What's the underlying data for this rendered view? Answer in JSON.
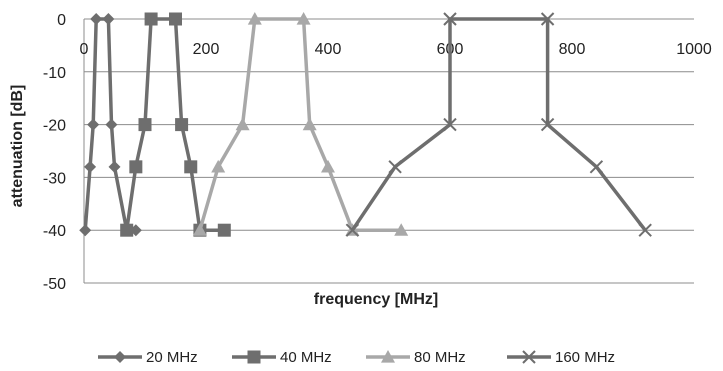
{
  "chart_data": {
    "type": "line",
    "title": "",
    "xlabel": "frequency [MHz]",
    "ylabel": "attenuation [dB]",
    "xlim": [
      0,
      1000
    ],
    "ylim": [
      -50,
      0
    ],
    "x_ticks": [
      0,
      200,
      400,
      600,
      800,
      1000
    ],
    "y_ticks": [
      0,
      -10,
      -20,
      -30,
      -40,
      -50
    ],
    "x_tick_labels": [
      "0",
      "200",
      "400",
      "600",
      "800",
      "1000"
    ],
    "y_tick_labels": [
      "0",
      "-10",
      "-20",
      "-30",
      "-40",
      "-50"
    ],
    "grid": {
      "horizontal": true,
      "vertical": false
    },
    "x_axis_position": "top",
    "legend_position": "bottom",
    "series": [
      {
        "name": "20 MHz",
        "marker": "diamond",
        "color": "#6e6e6e",
        "points": [
          [
            2,
            -40
          ],
          [
            10,
            -28
          ],
          [
            15,
            -20
          ],
          [
            20,
            0
          ],
          [
            40,
            0
          ],
          [
            45,
            -20
          ],
          [
            50,
            -28
          ],
          [
            70,
            -40
          ],
          [
            85,
            -40
          ]
        ]
      },
      {
        "name": "40 MHz",
        "marker": "square",
        "color": "#6e6e6e",
        "points": [
          [
            70,
            -40
          ],
          [
            85,
            -28
          ],
          [
            100,
            -20
          ],
          [
            110,
            0
          ],
          [
            150,
            0
          ],
          [
            160,
            -20
          ],
          [
            175,
            -28
          ],
          [
            190,
            -40
          ],
          [
            230,
            -40
          ]
        ]
      },
      {
        "name": "80 MHz",
        "marker": "triangle",
        "color": "#a8a8a8",
        "points": [
          [
            190,
            -40
          ],
          [
            220,
            -28
          ],
          [
            260,
            -20
          ],
          [
            280,
            0
          ],
          [
            360,
            0
          ],
          [
            370,
            -20
          ],
          [
            400,
            -28
          ],
          [
            440,
            -40
          ],
          [
            520,
            -40
          ]
        ]
      },
      {
        "name": "160 MHz",
        "marker": "x",
        "color": "#6e6e6e",
        "points": [
          [
            440,
            -40
          ],
          [
            510,
            -28
          ],
          [
            600,
            -20
          ],
          [
            600,
            0
          ],
          [
            760,
            0
          ],
          [
            760,
            -20
          ],
          [
            840,
            -28
          ],
          [
            920,
            -40
          ]
        ]
      }
    ]
  }
}
